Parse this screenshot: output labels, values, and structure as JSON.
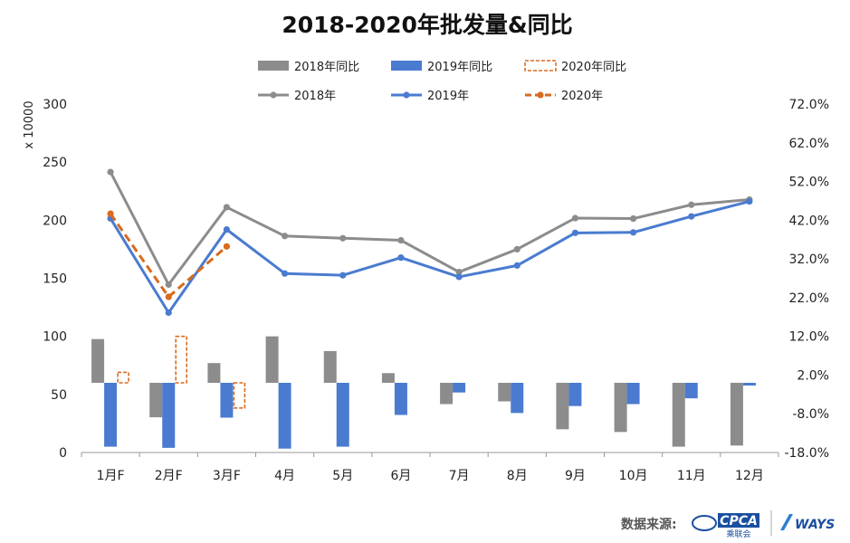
{
  "chart_data": {
    "type": "bar+line",
    "title": "2018-2020年批发量&同比",
    "categories": [
      "1月F",
      "2月F",
      "3月F",
      "4月",
      "5月",
      "6月",
      "7月",
      "8月",
      "9月",
      "10月",
      "11月",
      "12月"
    ],
    "y_left": {
      "label": "x 10000",
      "min": 0,
      "max": 300,
      "ticks": [
        "0",
        "50",
        "100",
        "150",
        "200",
        "250",
        "300"
      ]
    },
    "y_right": {
      "min": -0.18,
      "max": 0.72,
      "ticks": [
        "-18.0%",
        "-8.0%",
        "2.0%",
        "12.0%",
        "22.0%",
        "32.0%",
        "42.0%",
        "52.0%",
        "62.0%",
        "72.0%"
      ]
    },
    "bar_series": [
      {
        "name": "2018年同比",
        "color": "#8c8c8c",
        "style": "solid",
        "values": [
          0.113,
          -0.089,
          0.051,
          0.12,
          0.082,
          0.025,
          -0.055,
          -0.048,
          -0.12,
          -0.127,
          -0.165,
          -0.162
        ]
      },
      {
        "name": "2019年同比",
        "color": "#4a7bd0",
        "style": "solid",
        "values": [
          -0.165,
          -0.168,
          -0.09,
          -0.17,
          -0.165,
          -0.083,
          -0.025,
          -0.078,
          -0.06,
          -0.055,
          -0.04,
          -0.007
        ]
      },
      {
        "name": "2020年同比",
        "color": "#d96a1e",
        "style": "dashed",
        "values": [
          0.027,
          0.12,
          -0.065,
          null,
          null,
          null,
          null,
          null,
          null,
          null,
          null,
          null
        ]
      }
    ],
    "line_series": [
      {
        "name": "2018年",
        "color": "#8c8c8c",
        "style": "solid",
        "values": [
          241.5,
          144.6,
          211.2,
          186.4,
          184.5,
          182.7,
          155.4,
          175.0,
          201.8,
          201.4,
          213.3,
          217.8
        ]
      },
      {
        "name": "2019年",
        "color": "#4a7bd0",
        "style": "solid",
        "values": [
          201.5,
          120.4,
          192.0,
          154.1,
          152.6,
          167.8,
          151.2,
          161.0,
          189.1,
          189.5,
          203.3,
          216.2
        ]
      },
      {
        "name": "2020年",
        "color": "#d96a1e",
        "style": "dashed",
        "values": [
          205.6,
          134.0,
          177.4,
          null,
          null,
          null,
          null,
          null,
          null,
          null,
          null,
          null
        ]
      }
    ],
    "legend_position": "top",
    "grid": false
  },
  "source": {
    "label": "数据来源:",
    "logo1": "CPCA",
    "logo1_sub": "乘联会",
    "logo2": "WAYS"
  },
  "colors": {
    "gray": "#8c8c8c",
    "blue": "#4a7bd0",
    "orange": "#d96a1e",
    "axis": "#999999"
  }
}
